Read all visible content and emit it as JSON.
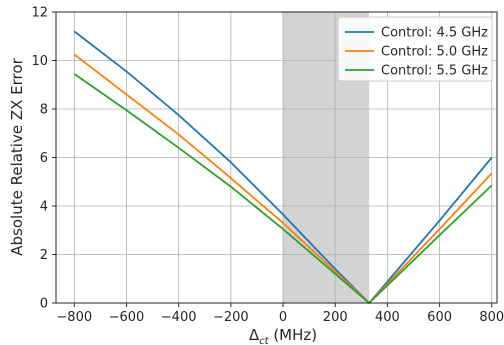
{
  "chart_data": {
    "type": "line",
    "xlabel_main": "Δ",
    "xlabel_sub": "ct",
    "xlabel_unit": " (MHz)",
    "ylabel": "Absolute Relative ZX Error",
    "xlim": [
      -870,
      820
    ],
    "ylim": [
      0,
      12
    ],
    "xticks": [
      -800,
      -600,
      -400,
      -200,
      0,
      200,
      400,
      600,
      800
    ],
    "xtick_labels": [
      "−800",
      "−600",
      "−400",
      "−200",
      "0",
      "200",
      "400",
      "600",
      "800"
    ],
    "yticks": [
      0,
      2,
      4,
      6,
      8,
      10,
      12
    ],
    "ytick_labels": [
      "0",
      "2",
      "4",
      "6",
      "8",
      "10",
      "12"
    ],
    "grid": true,
    "shaded_region": {
      "x": [
        0,
        330
      ],
      "color": "#d3d3d3"
    },
    "legend_position": "top-right",
    "series": [
      {
        "name": "Control: 4.5 GHz",
        "color": "#1f77b4",
        "x": [
          -800,
          -600,
          -400,
          -200,
          0,
          200,
          330,
          600,
          800
        ],
        "y": [
          11.2,
          9.55,
          7.75,
          5.8,
          3.65,
          1.4,
          0.0,
          3.4,
          6.0
        ]
      },
      {
        "name": "Control: 5.0 GHz",
        "color": "#ff7f0e",
        "x": [
          -800,
          -600,
          -400,
          -200,
          0,
          200,
          330,
          600,
          800
        ],
        "y": [
          10.25,
          8.6,
          6.95,
          5.15,
          3.3,
          1.3,
          0.0,
          3.05,
          5.35
        ]
      },
      {
        "name": "Control: 5.5 GHz",
        "color": "#2ca02c",
        "x": [
          -800,
          -600,
          -400,
          -200,
          0,
          200,
          330,
          600,
          800
        ],
        "y": [
          9.45,
          7.95,
          6.4,
          4.8,
          3.05,
          1.2,
          0.0,
          2.8,
          4.85
        ]
      }
    ]
  }
}
